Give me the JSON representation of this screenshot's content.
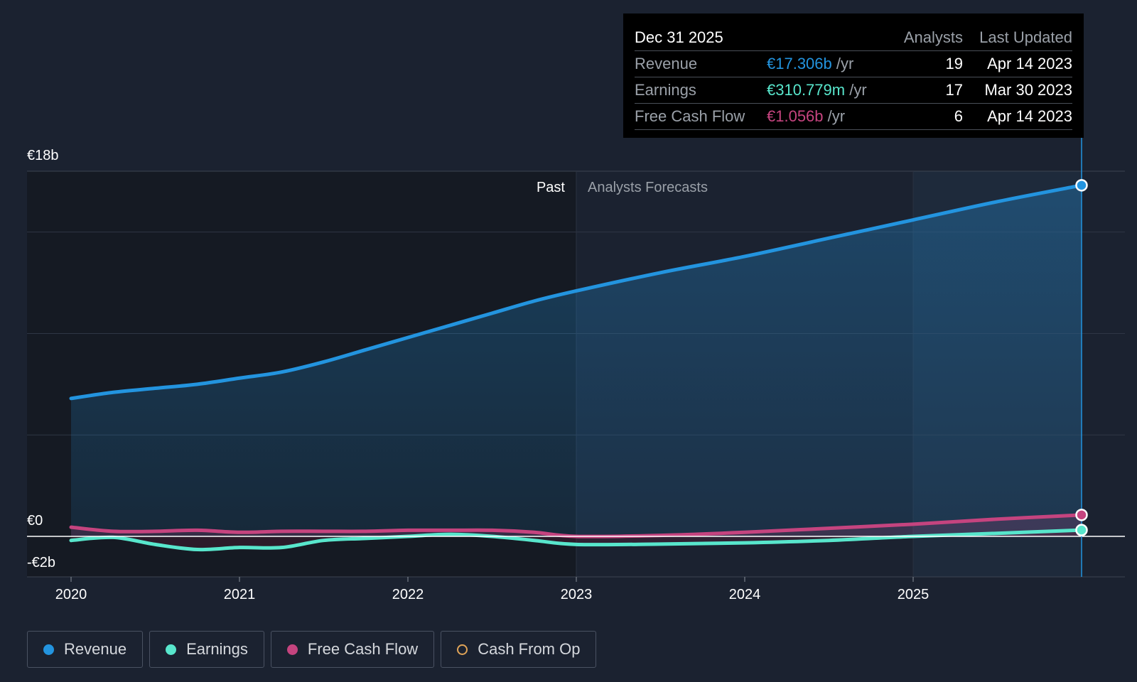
{
  "colors": {
    "background": "#1b2230",
    "past_shade": "#151a23",
    "revenue": "#2394df",
    "earnings": "#58e6cc",
    "free_cash_flow": "#c5447f",
    "cash_from_op": "#e0a458",
    "grid": "#2f3645"
  },
  "tooltip": {
    "date": "Dec 31 2025",
    "header_analysts": "Analysts",
    "header_updated": "Last Updated",
    "rows": [
      {
        "label": "Revenue",
        "value": "€17.306b",
        "unit": "/yr",
        "analysts": "19",
        "updated": "Apr 14 2023",
        "color": "#2394df"
      },
      {
        "label": "Earnings",
        "value": "€310.779m",
        "unit": "/yr",
        "analysts": "17",
        "updated": "Mar 30 2023",
        "color": "#58e6cc"
      },
      {
        "label": "Free Cash Flow",
        "value": "€1.056b",
        "unit": "/yr",
        "analysts": "6",
        "updated": "Apr 14 2023",
        "color": "#c5447f"
      }
    ]
  },
  "labels": {
    "past": "Past",
    "forecast": "Analysts Forecasts"
  },
  "legend": [
    {
      "label": "Revenue",
      "color": "#2394df",
      "style": "filled",
      "icon": "revenue-dot-icon"
    },
    {
      "label": "Earnings",
      "color": "#58e6cc",
      "style": "filled",
      "icon": "earnings-dot-icon"
    },
    {
      "label": "Free Cash Flow",
      "color": "#c5447f",
      "style": "filled",
      "icon": "fcf-dot-icon"
    },
    {
      "label": "Cash From Op",
      "color": "#e0a458",
      "style": "outline",
      "icon": "cfo-ring-icon"
    }
  ],
  "chart_data": {
    "type": "area",
    "title": "",
    "xlabel": "",
    "ylabel": "",
    "x_ticks": [
      "2020",
      "2021",
      "2022",
      "2023",
      "2024",
      "2025"
    ],
    "y_ticks": [
      {
        "value": 18,
        "label": "€18b"
      },
      {
        "value": 0,
        "label": "€0"
      },
      {
        "value": -2,
        "label": "-€2b"
      }
    ],
    "xlim": [
      2020,
      2026
    ],
    "ylim": [
      -2,
      18
    ],
    "gridlines_at": [
      18,
      15,
      10,
      5,
      0
    ],
    "forecast_start": 2023,
    "series": [
      {
        "name": "Revenue",
        "x": [
          2020,
          2020.25,
          2020.5,
          2020.75,
          2021,
          2021.25,
          2021.5,
          2021.75,
          2022,
          2022.25,
          2022.5,
          2022.75,
          2023,
          2023.5,
          2024,
          2024.5,
          2025,
          2025.5,
          2026
        ],
        "values": [
          6.8,
          7.1,
          7.3,
          7.5,
          7.8,
          8.1,
          8.6,
          9.2,
          9.8,
          10.4,
          11.0,
          11.6,
          12.1,
          13.0,
          13.8,
          14.7,
          15.6,
          16.5,
          17.306
        ]
      },
      {
        "name": "Earnings",
        "x": [
          2020,
          2020.25,
          2020.5,
          2020.75,
          2021,
          2021.25,
          2021.5,
          2021.75,
          2022,
          2022.25,
          2022.5,
          2022.75,
          2023,
          2023.5,
          2024,
          2024.5,
          2025,
          2025.5,
          2026
        ],
        "values": [
          -0.2,
          -0.05,
          -0.4,
          -0.65,
          -0.55,
          -0.55,
          -0.2,
          -0.1,
          0.0,
          0.1,
          0.0,
          -0.2,
          -0.4,
          -0.38,
          -0.32,
          -0.2,
          0.0,
          0.15,
          0.310779
        ]
      },
      {
        "name": "Free Cash Flow",
        "x": [
          2020,
          2020.25,
          2020.5,
          2020.75,
          2021,
          2021.25,
          2021.5,
          2021.75,
          2022,
          2022.25,
          2022.5,
          2022.75,
          2023,
          2023.5,
          2024,
          2024.5,
          2025,
          2025.5,
          2026
        ],
        "values": [
          0.45,
          0.25,
          0.25,
          0.3,
          0.2,
          0.25,
          0.25,
          0.25,
          0.3,
          0.3,
          0.3,
          0.2,
          0.0,
          0.05,
          0.2,
          0.4,
          0.6,
          0.85,
          1.056
        ]
      }
    ]
  }
}
